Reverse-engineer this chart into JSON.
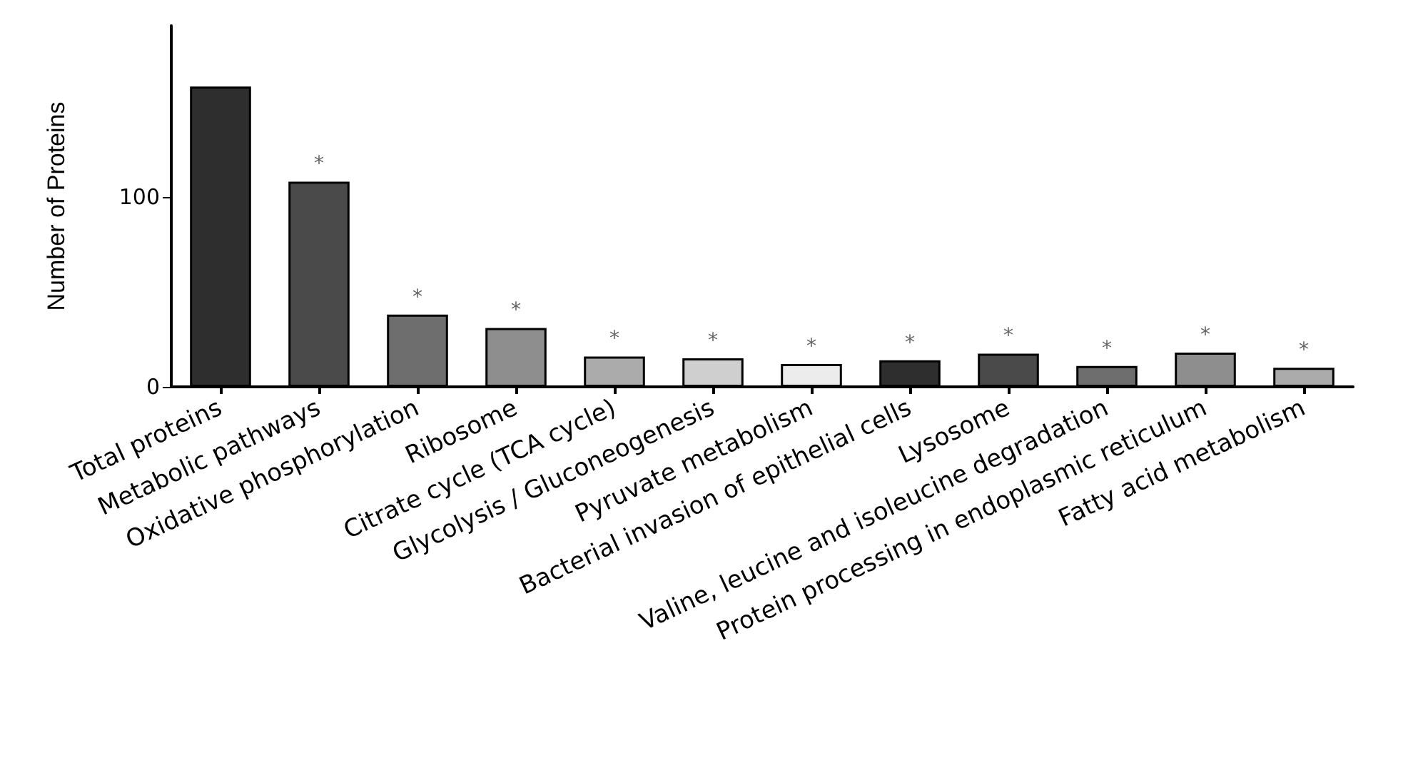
{
  "chart_data": {
    "type": "bar",
    "ylabel": "Number of Proteins",
    "categories": [
      "Total proteins",
      "Metabolic pathways",
      "Oxidative phosphorylation",
      "Ribosome",
      "Citrate cycle (TCA cycle)",
      "Glycolysis / Gluconeogenesis",
      "Pyruvate metabolism",
      "Bacterial invasion of epithelial cells",
      "Lysosome",
      "Valine, leucine and isoleucine degradation",
      "Protein processing in endoplasmic reticulum",
      "Fatty acid metabolism"
    ],
    "values": [
      158,
      108,
      38,
      31,
      16,
      15,
      12,
      14,
      17.5,
      11,
      18,
      10
    ],
    "colors": [
      "#2e2e2e",
      "#4a4a4a",
      "#6e6e6e",
      "#8e8e8e",
      "#ababab",
      "#cfcfcf",
      "#ececec",
      "#2e2e2e",
      "#4a4a4a",
      "#6e6e6e",
      "#8e8e8e",
      "#ababab"
    ],
    "value_labels": [
      null,
      "*",
      "*",
      "*",
      "*",
      "*",
      "*",
      "*",
      "*",
      "*",
      "*",
      "*"
    ],
    "ylim": [
      0,
      190
    ],
    "yticks": [
      0,
      100
    ],
    "grid": false
  }
}
